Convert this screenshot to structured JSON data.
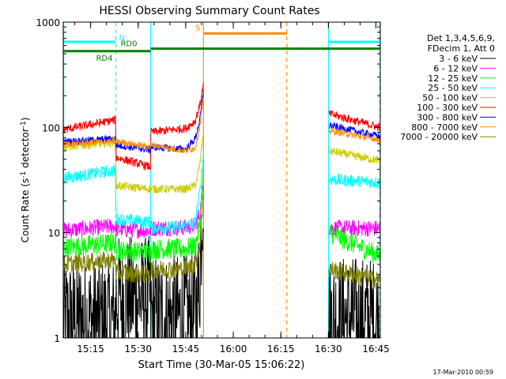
{
  "chart_data": {
    "type": "line",
    "title": "HESSI Observing Summary Count Rates",
    "xlabel": "Start Time (30-Mar-05 15:06:22)",
    "ylabel_main": "Count Rate (s",
    "ylabel_sup": "-1",
    "ylabel_mid": " detector",
    "ylabel_end": ")",
    "yscale": "log",
    "ylim": [
      1,
      1000
    ],
    "xlim_min": [
      906.37,
      1006.37
    ],
    "x_unit": "minutes of day",
    "x_ticks": [
      {
        "v": 915,
        "label": "15:15"
      },
      {
        "v": 930,
        "label": "15:30"
      },
      {
        "v": 945,
        "label": "15:45"
      },
      {
        "v": 960,
        "label": "16:00"
      },
      {
        "v": 975,
        "label": "16:15"
      },
      {
        "v": 990,
        "label": "16:30"
      },
      {
        "v": 1005,
        "label": "16:45"
      }
    ],
    "y_ticks": [
      {
        "v": 1,
        "label": "1"
      },
      {
        "v": 10,
        "label": "10"
      },
      {
        "v": 100,
        "label": "100"
      },
      {
        "v": 1000,
        "label": "1000"
      }
    ],
    "legend_header": [
      "Det 1,3,4,5,6,9,",
      "FDecim 1, Att 0"
    ],
    "series": [
      {
        "name": "3 - 6 keV",
        "color": "#000000",
        "noise": 0.6,
        "x": [
          906.4,
          922.9,
          923.0,
          933.9,
          934.0,
          948.0,
          949.5,
          950.5,
          990.0,
          990.1,
          1006.3
        ],
        "y": [
          1.5,
          1.5,
          2.4,
          2.4,
          1.6,
          1.6,
          4.0,
          30.0,
          2.2,
          1.6,
          1.5
        ]
      },
      {
        "name": "6 - 12 keV",
        "color": "#ff00ff",
        "noise": 0.08,
        "x": [
          906.4,
          922.9,
          923.0,
          933.9,
          934.0,
          945.0,
          948.0,
          949.5,
          950.5,
          990.0,
          990.1,
          1006.3
        ],
        "y": [
          10.5,
          11.5,
          10.8,
          10.5,
          11.0,
          11.2,
          11.8,
          15.0,
          30.0,
          12.0,
          11.0,
          11.0
        ]
      },
      {
        "name": "12 - 25 keV",
        "color": "#00ff00",
        "noise": 0.1,
        "x": [
          906.4,
          922.9,
          923.0,
          933.9,
          934.0,
          945.0,
          948.0,
          949.5,
          950.5,
          990.0,
          990.1,
          1006.3
        ],
        "y": [
          7.2,
          8.0,
          6.8,
          6.5,
          7.0,
          7.0,
          7.5,
          12.0,
          35.0,
          13.0,
          10.0,
          6.0
        ]
      },
      {
        "name": "25 - 50 keV",
        "color": "#00ffff",
        "noise": 0.06,
        "x": [
          906.4,
          922.9,
          923.0,
          929.0,
          933.9,
          934.0,
          945.0,
          948.0,
          949.5,
          950.5,
          990.0,
          990.1,
          1006.3
        ],
        "y": [
          33.0,
          39.0,
          13.5,
          13.0,
          12.5,
          11.0,
          11.5,
          12.5,
          25.0,
          55.0,
          40.0,
          32.0,
          30.0
        ]
      },
      {
        "name": "50 - 100 keV",
        "color": "#cccc00",
        "noise": 0.04,
        "x": [
          906.4,
          922.9,
          923.0,
          933.9,
          934.0,
          945.0,
          948.0,
          949.5,
          950.5,
          990.0,
          990.1,
          1006.3
        ],
        "y": [
          65.0,
          72.0,
          28.0,
          26.0,
          26.0,
          26.0,
          28.0,
          45.0,
          90.0,
          72.0,
          60.0,
          48.0
        ]
      },
      {
        "name": "100 - 300 keV",
        "color": "#ff0000",
        "noise": 0.04,
        "x": [
          906.4,
          922.9,
          923.0,
          933.9,
          934.0,
          945.0,
          948.0,
          949.5,
          950.5,
          990.0,
          990.1,
          1006.3
        ],
        "y": [
          95.0,
          118.0,
          52.0,
          42.0,
          90.0,
          98.0,
          115.0,
          165.0,
          250.0,
          155.0,
          135.0,
          100.0
        ]
      },
      {
        "name": "300 - 800 keV",
        "color": "#0000ff",
        "noise": 0.035,
        "x": [
          906.4,
          922.9,
          923.0,
          933.9,
          934.0,
          945.0,
          948.0,
          949.5,
          950.5,
          990.0,
          990.1,
          1006.3
        ],
        "y": [
          73.0,
          78.0,
          68.0,
          61.0,
          65.0,
          62.0,
          78.0,
          120.0,
          210.0,
          118.0,
          105.0,
          82.0
        ]
      },
      {
        "name": "800 - 7000 keV",
        "color": "#ff8c00",
        "noise": 0.03,
        "x": [
          906.4,
          922.9,
          923.0,
          933.9,
          934.0,
          945.0,
          948.0,
          949.5,
          950.5,
          990.0,
          990.1,
          1006.3
        ],
        "y": [
          69.0,
          74.0,
          74.0,
          65.0,
          68.0,
          60.0,
          64.0,
          105.0,
          180.0,
          108.0,
          93.0,
          76.0
        ]
      },
      {
        "name": "7000 - 20000 keV",
        "color": "#808000",
        "noise": 0.09,
        "x": [
          906.4,
          922.9,
          923.0,
          933.9,
          934.0,
          945.0,
          948.0,
          949.5,
          950.5,
          990.0,
          990.1,
          1006.3
        ],
        "y": [
          5.0,
          5.5,
          4.2,
          4.0,
          4.5,
          4.5,
          5.0,
          8.0,
          22.0,
          6.0,
          4.5,
          3.5
        ]
      }
    ],
    "vlines": [
      {
        "x": 906.5,
        "color": "#00ffff",
        "dash": false
      },
      {
        "x": 922.95,
        "color": "#00ffff",
        "dash": true
      },
      {
        "x": 933.95,
        "color": "#00ffff",
        "dash": false
      },
      {
        "x": 990.05,
        "color": "#00ffff",
        "dash": false
      },
      {
        "x": 1006.2,
        "color": "#00ffff",
        "dash": true
      },
      {
        "x": 950.6,
        "color": "#ff8c00",
        "dash": false
      },
      {
        "x": 976.9,
        "color": "#ff8c00",
        "dash": true
      }
    ],
    "segments": [
      {
        "label": "N",
        "x0": 906.5,
        "x1": 922.95,
        "y": 650,
        "color": "#00ffff"
      },
      {
        "label": "",
        "x0": 990.05,
        "x1": 1006.2,
        "y": 650,
        "color": "#00ffff"
      },
      {
        "label": "S",
        "x0": 950.6,
        "x1": 976.9,
        "y": 780,
        "color": "#ff8c00"
      },
      {
        "label": "RD0",
        "x0": 933.95,
        "x1": 1006.3,
        "y": 560,
        "color": "#008000"
      },
      {
        "label": "RD4",
        "x0": 906.5,
        "x1": 933.95,
        "y": 530,
        "color": "#008000"
      }
    ],
    "labels": {
      "N": "N",
      "S": "S",
      "RD0": "RD0",
      "RD4": "RD4"
    },
    "timestamp": "17-Mar-2010 00:59"
  }
}
